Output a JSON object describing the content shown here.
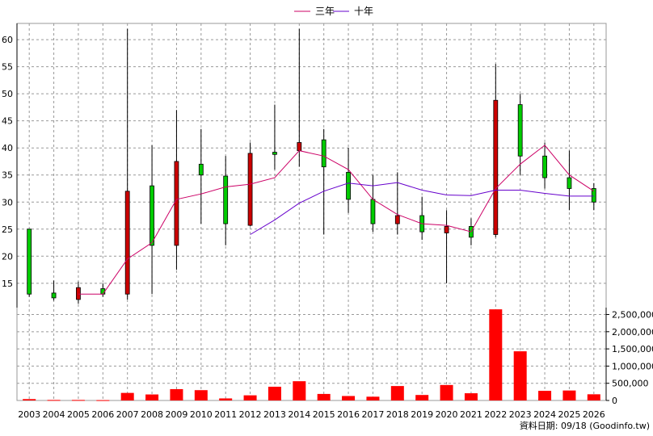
{
  "chart_data": {
    "type": "candlestick",
    "legend": [
      {
        "name": "三年",
        "color": "#cc0066"
      },
      {
        "name": "十年",
        "color": "#6600cc"
      }
    ],
    "x": [
      "2003",
      "2004",
      "2005",
      "2006",
      "2007",
      "2008",
      "2009",
      "2010",
      "2011",
      "2012",
      "2013",
      "2014",
      "2015",
      "2016",
      "2017",
      "2018",
      "2019",
      "2020",
      "2021",
      "2022",
      "2023",
      "2024",
      "2025",
      "2026"
    ],
    "price": {
      "ylim": [
        10.5,
        63
      ],
      "yticks": [
        15,
        20,
        25,
        30,
        35,
        40,
        45,
        50,
        55,
        60
      ],
      "candles": [
        {
          "open": 13.0,
          "high": 25.0,
          "low": 12.5,
          "close": 25.0
        },
        {
          "open": 12.3,
          "high": 15.5,
          "low": 11.8,
          "close": 13.2
        },
        {
          "open": 14.2,
          "high": 15.3,
          "low": 11.2,
          "close": 12.0
        },
        {
          "open": 13.0,
          "high": 15.0,
          "low": 12.5,
          "close": 14.0
        },
        {
          "open": 32.0,
          "high": 62.0,
          "low": 12.0,
          "close": 13.0
        },
        {
          "open": 22.0,
          "high": 40.5,
          "low": 13.0,
          "close": 33.0
        },
        {
          "open": 37.5,
          "high": 47.0,
          "low": 17.5,
          "close": 22.0
        },
        {
          "open": 35.0,
          "high": 43.5,
          "low": 26.0,
          "close": 37.0
        },
        {
          "open": 26.0,
          "high": 38.5,
          "low": 22.0,
          "close": 34.8
        },
        {
          "open": 39.0,
          "high": 41.0,
          "low": 25.5,
          "close": 25.7
        },
        {
          "open": 38.8,
          "high": 48.0,
          "low": 36.0,
          "close": 39.2
        },
        {
          "open": 41.0,
          "high": 62.0,
          "low": 36.5,
          "close": 39.5
        },
        {
          "open": 36.5,
          "high": 43.5,
          "low": 24.0,
          "close": 41.5
        },
        {
          "open": 30.5,
          "high": 40.0,
          "low": 28.0,
          "close": 35.5
        },
        {
          "open": 26.0,
          "high": 35.0,
          "low": 24.5,
          "close": 30.5
        },
        {
          "open": 27.5,
          "high": 35.5,
          "low": 24.0,
          "close": 26.0
        },
        {
          "open": 24.5,
          "high": 31.0,
          "low": 23.0,
          "close": 27.5
        },
        {
          "open": 25.5,
          "high": 28.5,
          "low": 15.0,
          "close": 24.3
        },
        {
          "open": 23.5,
          "high": 27.0,
          "low": 22.0,
          "close": 25.5
        },
        {
          "open": 48.8,
          "high": 55.5,
          "low": 23.5,
          "close": 24.0
        },
        {
          "open": 38.5,
          "high": 50.0,
          "low": 35.0,
          "close": 48.0
        },
        {
          "open": 34.5,
          "high": 41.0,
          "low": 32.5,
          "close": 38.5
        },
        {
          "open": 32.5,
          "high": 39.5,
          "low": 28.5,
          "close": 34.5
        },
        {
          "open": 30.0,
          "high": 33.5,
          "low": 28.5,
          "close": 32.5
        }
      ],
      "ma3": [
        null,
        null,
        13.0,
        13.0,
        19.5,
        22.5,
        30.5,
        31.5,
        32.8,
        33.3,
        34.5,
        39.5,
        38.5,
        36.0,
        30.5,
        27.7,
        26.0,
        25.7,
        24.5,
        32.5,
        37.0,
        40.5,
        35.0,
        32.0
      ],
      "ma10": [
        null,
        null,
        null,
        null,
        null,
        null,
        null,
        null,
        null,
        24.0,
        26.7,
        29.8,
        32.0,
        33.5,
        33.0,
        33.6,
        32.2,
        31.3,
        31.2,
        32.2,
        32.2,
        31.6,
        31.1,
        31.1
      ]
    },
    "volume": {
      "ylim": [
        0,
        2700000
      ],
      "yticks": [
        0,
        500000,
        1000000,
        1500000,
        2000000,
        2500000
      ],
      "ytick_labels": [
        "0",
        "500,000",
        "1,000,000",
        "1,500,000",
        "2,000,000",
        "2,500,000"
      ],
      "values": [
        40000,
        15000,
        15000,
        10000,
        220000,
        175000,
        330000,
        300000,
        60000,
        150000,
        400000,
        560000,
        190000,
        130000,
        110000,
        420000,
        160000,
        450000,
        210000,
        2650000,
        1430000,
        280000,
        290000,
        180000
      ]
    },
    "grid": true,
    "colors": {
      "up": "#00cc00",
      "down": "#cc0000",
      "volume": "#ff0000",
      "grid": "#999999"
    }
  },
  "footer": {
    "credit": "資料日期: 09/18 (Goodinfo.tw)"
  }
}
